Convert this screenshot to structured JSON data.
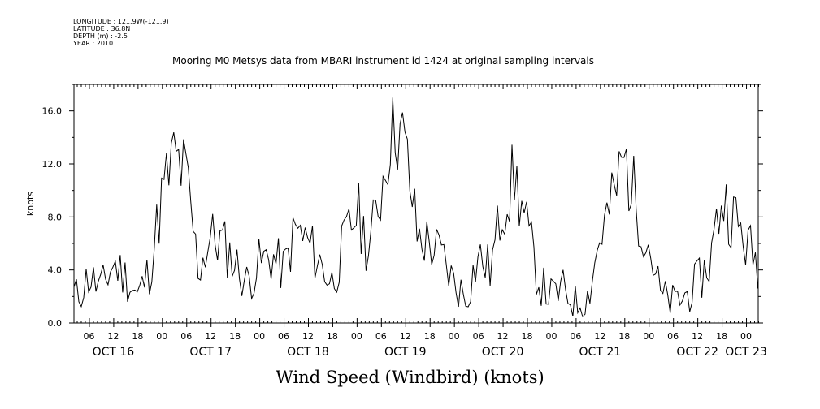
{
  "header": {
    "longitude": "LONGITUDE : 121.9W(-121.9)",
    "latitude": "LATITUDE : 36.8N",
    "depth": "DEPTH (m) : -2.5",
    "year": "YEAR : 2010",
    "title": "Mooring M0 Metsys data from MBARI instrument id 1424 at original sampling intervals"
  },
  "chart_data": {
    "type": "line",
    "title": "Mooring M0 Metsys data from MBARI instrument id 1424 at original sampling intervals",
    "xlabel": "Wind Speed (Windbird) (knots)",
    "ylabel": "knots",
    "ylim": [
      0,
      18
    ],
    "yticks": [
      "0.0",
      "4.0",
      "8.0",
      "12.0",
      "16.0"
    ],
    "x_unit": "hours since OCT 16 00:00 (2010)",
    "xlim": [
      2.3,
      171
    ],
    "hour_ticks": [
      "06",
      "12",
      "18",
      "00",
      "06",
      "12",
      "18",
      "00",
      "06",
      "12",
      "18",
      "00",
      "06",
      "12",
      "18",
      "00",
      "06",
      "12",
      "18",
      "00",
      "06",
      "12",
      "18",
      "00",
      "06",
      "12",
      "18",
      "00"
    ],
    "day_labels": [
      "OCT 16",
      "OCT 17",
      "OCT 18",
      "OCT 19",
      "OCT 20",
      "OCT 21",
      "OCT 22",
      "OCT 23"
    ],
    "series": [
      {
        "x": [
          0,
          3,
          6,
          9,
          12,
          15,
          18,
          21,
          24,
          27,
          30,
          33,
          36,
          39,
          42,
          45,
          48,
          51,
          54,
          57,
          60,
          63,
          66,
          69,
          72,
          75,
          78,
          81,
          84,
          87,
          90,
          93,
          96,
          99,
          102,
          105,
          108,
          111,
          114,
          117,
          120,
          123,
          126,
          129,
          132,
          135,
          138,
          141,
          144,
          147,
          150,
          153,
          156,
          159,
          162,
          165,
          168,
          171
        ],
        "y": [
          3.0,
          2.0,
          3.5,
          2.5,
          4.5,
          3.5,
          2.0,
          4.0,
          9.5,
          12.5,
          11.0,
          4.0,
          6.5,
          6.0,
          4.5,
          3.0,
          4.5,
          5.0,
          4.0,
          7.0,
          6.0,
          4.5,
          3.0,
          6.0,
          8.5,
          5.5,
          10.0,
          16.0,
          13.0,
          6.5,
          6.0,
          5.0,
          3.0,
          2.0,
          5.0,
          4.0,
          9.0,
          11.0,
          7.0,
          3.0,
          2.0,
          2.5,
          1.5,
          2.0,
          6.5,
          9.0,
          12.5,
          9.0,
          6.0,
          2.0,
          1.5,
          2.0,
          3.0,
          4.5,
          9.5,
          8.0,
          6.0,
          4.5
        ]
      }
    ],
    "series_extra": [
      {
        "x": [
          102,
          105,
          108,
          111,
          114,
          117,
          120,
          123,
          126,
          129,
          132,
          135,
          138,
          141,
          144,
          147,
          150,
          153,
          156,
          159,
          162,
          165,
          168,
          171
        ],
        "y": [
          5.0,
          4.0,
          9.0,
          11.0,
          7.0,
          3.0,
          2.0,
          2.5,
          1.5,
          2.0,
          6.5,
          9.0,
          12.5,
          9.0,
          6.0,
          2.0,
          1.5,
          2.0,
          3.0,
          4.5,
          9.5,
          8.0,
          6.0,
          4.5
        ]
      }
    ],
    "grid": false
  }
}
